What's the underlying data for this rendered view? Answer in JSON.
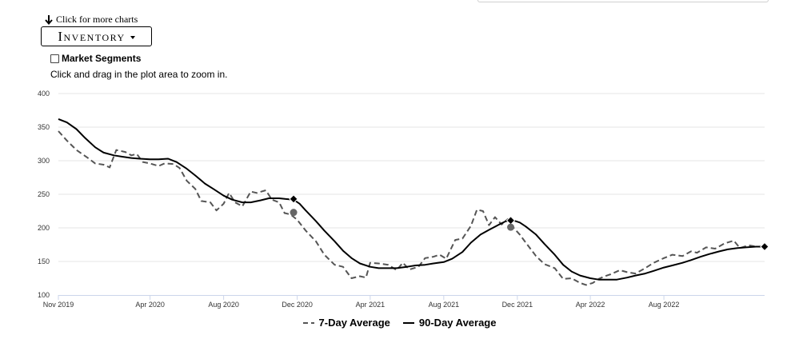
{
  "header": {
    "more_charts_label": "Click for more charts",
    "dropdown_label": "Inventory",
    "segments_label": "Market Segments",
    "zoom_hint": "Click and drag in the plot area to zoom in."
  },
  "chart_data": {
    "type": "line",
    "title": "",
    "xlabel": "",
    "ylabel": "",
    "ylim": [
      100,
      400
    ],
    "yticks": [
      100,
      150,
      200,
      250,
      300,
      350,
      400
    ],
    "x_range": [
      "2019-11-01",
      "2023-01-15"
    ],
    "xticks": [
      {
        "date": "2019-11-01",
        "label": "Nov 2019"
      },
      {
        "date": "2020-04-01",
        "label": "Apr 2020"
      },
      {
        "date": "2020-08-01",
        "label": "Aug 2020"
      },
      {
        "date": "2020-12-01",
        "label": "Dec 2020"
      },
      {
        "date": "2021-04-01",
        "label": "Apr 2021"
      },
      {
        "date": "2021-08-01",
        "label": "Aug 2021"
      },
      {
        "date": "2021-12-01",
        "label": "Dec 2021"
      },
      {
        "date": "2022-04-01",
        "label": "Apr 2022"
      },
      {
        "date": "2022-08-01",
        "label": "Aug 2022"
      }
    ],
    "grid": true,
    "legend_position": "bottom-center",
    "series": [
      {
        "name": "7-Day Average",
        "color": "#555555",
        "style": "dashed",
        "points": [
          [
            "2019-11-01",
            344
          ],
          [
            "2019-11-15",
            330
          ],
          [
            "2019-12-01",
            316
          ],
          [
            "2019-12-20",
            304
          ],
          [
            "2020-01-01",
            296
          ],
          [
            "2020-01-15",
            294
          ],
          [
            "2020-01-25",
            290
          ],
          [
            "2020-02-05",
            316
          ],
          [
            "2020-02-20",
            313
          ],
          [
            "2020-03-01",
            308
          ],
          [
            "2020-03-10",
            310
          ],
          [
            "2020-03-20",
            298
          ],
          [
            "2020-04-01",
            296
          ],
          [
            "2020-04-15",
            292
          ],
          [
            "2020-04-25",
            296
          ],
          [
            "2020-05-10",
            295
          ],
          [
            "2020-05-20",
            289
          ],
          [
            "2020-06-01",
            270
          ],
          [
            "2020-06-15",
            258
          ],
          [
            "2020-06-25",
            240
          ],
          [
            "2020-07-10",
            238
          ],
          [
            "2020-07-20",
            226
          ],
          [
            "2020-08-01",
            236
          ],
          [
            "2020-08-10",
            252
          ],
          [
            "2020-08-20",
            238
          ],
          [
            "2020-09-01",
            232
          ],
          [
            "2020-09-15",
            254
          ],
          [
            "2020-09-25",
            252
          ],
          [
            "2020-10-10",
            256
          ],
          [
            "2020-10-20",
            242
          ],
          [
            "2020-11-01",
            238
          ],
          [
            "2020-11-10",
            222
          ],
          [
            "2020-11-20",
            220
          ],
          [
            "2020-12-01",
            212
          ],
          [
            "2020-12-15",
            196
          ],
          [
            "2021-01-01",
            180
          ],
          [
            "2021-01-15",
            160
          ],
          [
            "2021-02-01",
            145
          ],
          [
            "2021-02-15",
            142
          ],
          [
            "2021-03-01",
            125
          ],
          [
            "2021-03-15",
            128
          ],
          [
            "2021-03-25",
            126
          ],
          [
            "2021-04-01",
            148
          ],
          [
            "2021-04-15",
            147
          ],
          [
            "2021-05-01",
            145
          ],
          [
            "2021-05-15",
            137
          ],
          [
            "2021-05-25",
            148
          ],
          [
            "2021-06-05",
            138
          ],
          [
            "2021-06-20",
            142
          ],
          [
            "2021-07-01",
            155
          ],
          [
            "2021-07-15",
            157
          ],
          [
            "2021-07-25",
            160
          ],
          [
            "2021-08-05",
            154
          ],
          [
            "2021-08-20",
            182
          ],
          [
            "2021-09-01",
            184
          ],
          [
            "2021-09-15",
            203
          ],
          [
            "2021-09-25",
            227
          ],
          [
            "2021-10-05",
            225
          ],
          [
            "2021-10-15",
            204
          ],
          [
            "2021-10-25",
            216
          ],
          [
            "2021-11-05",
            205
          ],
          [
            "2021-11-15",
            213
          ],
          [
            "2021-11-25",
            200
          ],
          [
            "2021-12-05",
            190
          ],
          [
            "2021-12-15",
            178
          ],
          [
            "2022-01-01",
            158
          ],
          [
            "2022-01-15",
            146
          ],
          [
            "2022-02-01",
            140
          ],
          [
            "2022-02-15",
            124
          ],
          [
            "2022-03-01",
            125
          ],
          [
            "2022-03-15",
            118
          ],
          [
            "2022-03-25",
            115
          ],
          [
            "2022-04-05",
            118
          ],
          [
            "2022-04-15",
            124
          ],
          [
            "2022-04-25",
            128
          ],
          [
            "2022-05-05",
            131
          ],
          [
            "2022-05-20",
            137
          ],
          [
            "2022-06-01",
            134
          ],
          [
            "2022-06-15",
            132
          ],
          [
            "2022-07-01",
            140
          ],
          [
            "2022-07-15",
            148
          ],
          [
            "2022-08-01",
            155
          ],
          [
            "2022-08-15",
            160
          ],
          [
            "2022-09-01",
            158
          ],
          [
            "2022-09-15",
            165
          ],
          [
            "2022-09-25",
            163
          ],
          [
            "2022-10-10",
            171
          ],
          [
            "2022-10-25",
            169
          ],
          [
            "2022-11-10",
            177
          ],
          [
            "2022-11-25",
            181
          ],
          [
            "2022-12-05",
            170
          ],
          [
            "2022-12-20",
            174
          ],
          [
            "2023-01-01",
            172
          ],
          [
            "2023-01-15",
            172
          ]
        ]
      },
      {
        "name": "90-Day Average",
        "color": "#000000",
        "style": "solid",
        "points": [
          [
            "2019-11-01",
            362
          ],
          [
            "2019-11-15",
            357
          ],
          [
            "2019-12-01",
            347
          ],
          [
            "2019-12-15",
            334
          ],
          [
            "2020-01-01",
            320
          ],
          [
            "2020-01-15",
            312
          ],
          [
            "2020-02-01",
            308
          ],
          [
            "2020-02-15",
            306
          ],
          [
            "2020-03-01",
            304
          ],
          [
            "2020-03-15",
            303
          ],
          [
            "2020-04-01",
            302
          ],
          [
            "2020-04-15",
            302
          ],
          [
            "2020-05-01",
            303
          ],
          [
            "2020-05-15",
            298
          ],
          [
            "2020-06-01",
            288
          ],
          [
            "2020-06-15",
            278
          ],
          [
            "2020-07-01",
            266
          ],
          [
            "2020-07-15",
            258
          ],
          [
            "2020-08-01",
            248
          ],
          [
            "2020-08-15",
            242
          ],
          [
            "2020-09-01",
            238
          ],
          [
            "2020-09-15",
            238
          ],
          [
            "2020-10-01",
            241
          ],
          [
            "2020-10-15",
            244
          ],
          [
            "2020-11-01",
            244
          ],
          [
            "2020-11-12",
            243
          ],
          [
            "2020-11-25",
            242
          ],
          [
            "2020-12-05",
            236
          ],
          [
            "2020-12-15",
            226
          ],
          [
            "2021-01-01",
            210
          ],
          [
            "2021-01-15",
            196
          ],
          [
            "2021-02-01",
            180
          ],
          [
            "2021-02-15",
            166
          ],
          [
            "2021-03-01",
            155
          ],
          [
            "2021-03-15",
            147
          ],
          [
            "2021-04-01",
            142
          ],
          [
            "2021-04-15",
            140
          ],
          [
            "2021-05-01",
            140
          ],
          [
            "2021-05-15",
            140
          ],
          [
            "2021-06-01",
            142
          ],
          [
            "2021-06-15",
            144
          ],
          [
            "2021-07-01",
            145
          ],
          [
            "2021-07-15",
            147
          ],
          [
            "2021-08-01",
            149
          ],
          [
            "2021-08-15",
            154
          ],
          [
            "2021-09-01",
            164
          ],
          [
            "2021-09-15",
            178
          ],
          [
            "2021-10-01",
            190
          ],
          [
            "2021-10-15",
            197
          ],
          [
            "2021-11-01",
            205
          ],
          [
            "2021-11-12",
            210
          ],
          [
            "2021-11-25",
            211
          ],
          [
            "2021-12-05",
            208
          ],
          [
            "2021-12-15",
            202
          ],
          [
            "2022-01-01",
            190
          ],
          [
            "2022-01-15",
            176
          ],
          [
            "2022-02-01",
            160
          ],
          [
            "2022-02-15",
            145
          ],
          [
            "2022-03-01",
            135
          ],
          [
            "2022-03-15",
            129
          ],
          [
            "2022-04-01",
            125
          ],
          [
            "2022-04-15",
            123
          ],
          [
            "2022-05-01",
            123
          ],
          [
            "2022-05-15",
            123
          ],
          [
            "2022-06-01",
            126
          ],
          [
            "2022-06-15",
            129
          ],
          [
            "2022-07-01",
            132
          ],
          [
            "2022-07-15",
            136
          ],
          [
            "2022-08-01",
            141
          ],
          [
            "2022-08-15",
            144
          ],
          [
            "2022-09-01",
            148
          ],
          [
            "2022-09-15",
            152
          ],
          [
            "2022-10-01",
            157
          ],
          [
            "2022-10-15",
            161
          ],
          [
            "2022-11-01",
            165
          ],
          [
            "2022-11-15",
            168
          ],
          [
            "2022-12-01",
            170
          ],
          [
            "2022-12-15",
            171
          ],
          [
            "2023-01-01",
            172
          ],
          [
            "2023-01-15",
            172
          ]
        ]
      }
    ],
    "markers": [
      {
        "series": "90-Day Average",
        "shape": "diamond",
        "date": "2020-11-25",
        "value": 243
      },
      {
        "series": "7-Day Average",
        "shape": "circle",
        "date": "2020-11-25",
        "value": 223
      },
      {
        "series": "90-Day Average",
        "shape": "diamond",
        "date": "2021-11-20",
        "value": 211
      },
      {
        "series": "7-Day Average",
        "shape": "circle",
        "date": "2021-11-20",
        "value": 201
      },
      {
        "series": "90-Day Average",
        "shape": "diamond",
        "date": "2023-01-15",
        "value": 172
      }
    ]
  }
}
